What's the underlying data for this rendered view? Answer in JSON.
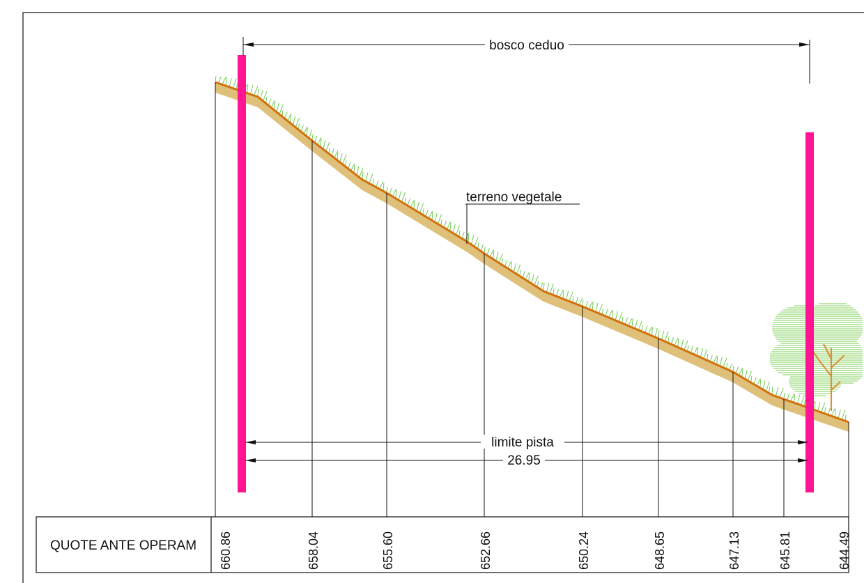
{
  "labels": {
    "top_dimension": "bosco ceduo",
    "terrain": "terreno vegetale",
    "limit": "limite pista",
    "width": "26.95"
  },
  "table": {
    "row_title": "QUOTE ANTE OPERAM",
    "elevations": [
      "660.86",
      "658.04",
      "655.60",
      "652.66",
      "650.24",
      "648.65",
      "647.13",
      "645.81",
      "644.49"
    ]
  },
  "colors": {
    "ground_line": "#d4700a",
    "ground_fill": "#dfc07a",
    "grass": "#6ecb4e",
    "limit_bar": "#ff1493",
    "tree_canopy": "#7dcf55",
    "tree_trunk": "#d9923a"
  }
}
